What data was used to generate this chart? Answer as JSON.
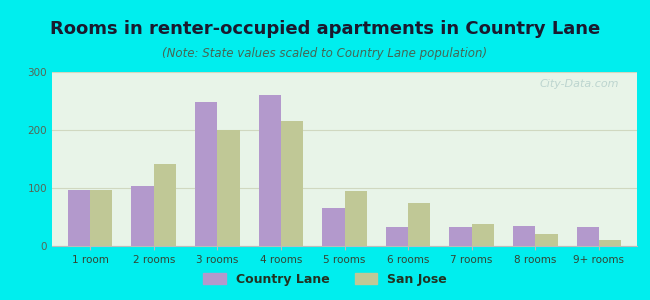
{
  "title": "Rooms in renter-occupied apartments in Country Lane",
  "subtitle": "(Note: State values scaled to Country Lane population)",
  "categories": [
    "1 room",
    "2 rooms",
    "3 rooms",
    "4 rooms",
    "5 rooms",
    "6 rooms",
    "7 rooms",
    "8 rooms",
    "9+ rooms"
  ],
  "country_lane": [
    96,
    103,
    248,
    260,
    65,
    33,
    33,
    35,
    32
  ],
  "san_jose": [
    97,
    142,
    200,
    215,
    95,
    75,
    38,
    20,
    10
  ],
  "bar_color_cl": "#b399cc",
  "bar_color_sj": "#c0c896",
  "bg_outer": "#00eeee",
  "bg_plot": "#e8f4e8",
  "title_fontsize": 13,
  "subtitle_fontsize": 8.5,
  "tick_fontsize": 7.5,
  "legend_fontsize": 9,
  "ylim": [
    0,
    300
  ],
  "yticks": [
    0,
    100,
    200,
    300
  ],
  "grid_color": "#d0d8c0",
  "axis_color": "#bbbbbb",
  "text_color": "#1a1a2e",
  "watermark": "City-Data.com"
}
